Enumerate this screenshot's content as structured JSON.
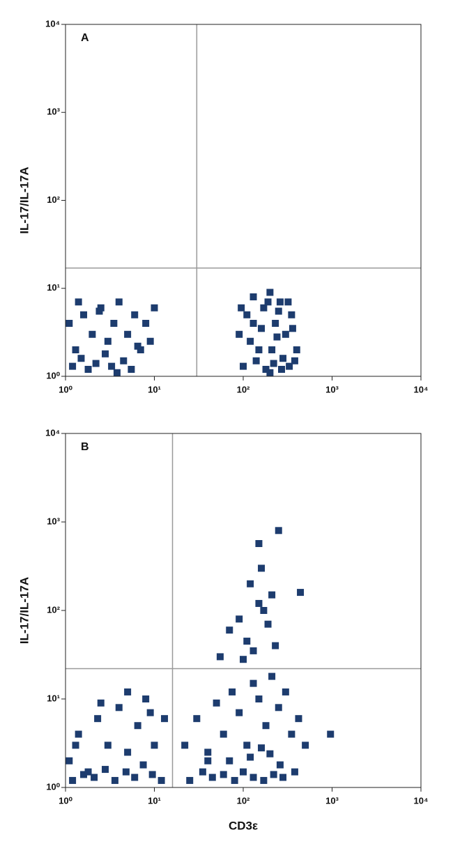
{
  "chart_data": [
    {
      "type": "scatter",
      "panel_label": "A",
      "ylabel": "IL-17/IL-17A",
      "color": "#1d3c6e",
      "log_x": true,
      "log_y": true,
      "xlim": [
        1,
        10000
      ],
      "ylim": [
        1,
        10000
      ],
      "xticks": [
        {
          "value": 1,
          "label": "10⁰"
        },
        {
          "value": 10,
          "label": "10¹"
        },
        {
          "value": 100,
          "label": "10²"
        },
        {
          "value": 1000,
          "label": "10³"
        },
        {
          "value": 10000,
          "label": "10⁴"
        }
      ],
      "yticks": [
        {
          "value": 1,
          "label": "10⁰"
        },
        {
          "value": 10,
          "label": "10¹"
        },
        {
          "value": 100,
          "label": "10²"
        },
        {
          "value": 1000,
          "label": "10³"
        },
        {
          "value": 10000,
          "label": "10⁴"
        }
      ],
      "x_gate": 30,
      "y_gate": 17,
      "x": [
        1.1,
        1.3,
        1.6,
        2,
        2.5,
        3,
        3.5,
        4,
        5,
        6,
        7,
        8,
        10,
        1.2,
        1.5,
        1.8,
        2.2,
        2.8,
        3.3,
        4.5,
        5.5,
        6.5,
        1.4,
        2.4,
        3.8,
        9,
        90,
        110,
        130,
        150,
        170,
        200,
        230,
        260,
        300,
        350,
        400,
        100,
        140,
        180,
        220,
        280,
        330,
        380,
        120,
        160,
        210,
        250,
        320,
        95,
        200,
        270,
        360,
        130,
        190,
        240
      ],
      "values": [
        4,
        2,
        5,
        3,
        6,
        2.5,
        4,
        7,
        3,
        5,
        2,
        4,
        6,
        1.3,
        1.6,
        1.2,
        1.4,
        1.8,
        1.3,
        1.5,
        1.2,
        2.2,
        7,
        5.5,
        1.1,
        2.5,
        3,
        5,
        8,
        2,
        6,
        9,
        4,
        7,
        3,
        5,
        2,
        1.3,
        1.5,
        1.2,
        1.4,
        1.6,
        1.3,
        1.5,
        2.5,
        3.5,
        2,
        5.5,
        7,
        6,
        1.1,
        1.2,
        3.5,
        4,
        7,
        2.8
      ]
    },
    {
      "type": "scatter",
      "panel_label": "B",
      "ylabel": "IL-17/IL-17A",
      "xlabel": "CD3ε",
      "color": "#1d3c6e",
      "log_x": true,
      "log_y": true,
      "xlim": [
        1,
        10000
      ],
      "ylim": [
        1,
        10000
      ],
      "xticks": [
        {
          "value": 1,
          "label": "10⁰"
        },
        {
          "value": 10,
          "label": "10¹"
        },
        {
          "value": 100,
          "label": "10²"
        },
        {
          "value": 1000,
          "label": "10³"
        },
        {
          "value": 10000,
          "label": "10⁴"
        }
      ],
      "yticks": [
        {
          "value": 1,
          "label": "10⁰"
        },
        {
          "value": 10,
          "label": "10¹"
        },
        {
          "value": 100,
          "label": "10²"
        },
        {
          "value": 1000,
          "label": "10³"
        },
        {
          "value": 10000,
          "label": "10⁴"
        }
      ],
      "x_gate": 16,
      "y_gate": 22,
      "x": [
        1.1,
        1.4,
        1.8,
        2.3,
        3,
        4,
        5,
        6.5,
        8,
        10,
        13,
        1.2,
        1.6,
        2.1,
        2.8,
        3.6,
        4.8,
        6,
        7.5,
        9.5,
        12,
        1.3,
        2.5,
        5,
        9,
        22,
        30,
        40,
        50,
        60,
        75,
        90,
        110,
        130,
        150,
        180,
        210,
        250,
        300,
        350,
        420,
        500,
        25,
        35,
        45,
        60,
        80,
        100,
        130,
        170,
        220,
        280,
        380,
        40,
        70,
        120,
        160,
        200,
        260,
        960,
        55,
        70,
        90,
        110,
        130,
        150,
        170,
        190,
        210,
        230,
        150,
        250,
        440,
        160,
        120,
        100
      ],
      "values": [
        2,
        4,
        1.5,
        6,
        3,
        8,
        2.5,
        5,
        10,
        3,
        6,
        1.2,
        1.4,
        1.3,
        1.6,
        1.2,
        1.5,
        1.3,
        1.8,
        1.4,
        1.2,
        3,
        9,
        12,
        7,
        3,
        6,
        2,
        9,
        4,
        12,
        7,
        3,
        15,
        10,
        5,
        18,
        8,
        12,
        4,
        6,
        3,
        1.2,
        1.5,
        1.3,
        1.4,
        1.2,
        1.5,
        1.3,
        1.2,
        1.4,
        1.3,
        1.5,
        2.5,
        2,
        2.2,
        2.8,
        2.4,
        1.8,
        4,
        30,
        60,
        80,
        45,
        35,
        120,
        100,
        70,
        150,
        40,
        570,
        800,
        160,
        300,
        200,
        28
      ]
    }
  ]
}
